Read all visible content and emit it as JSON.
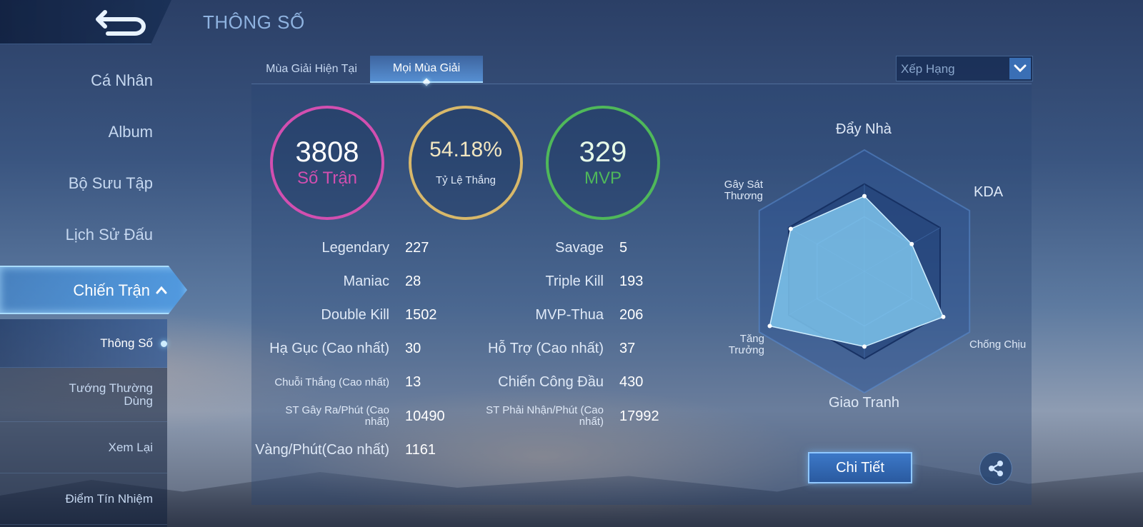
{
  "header": {
    "title": "THÔNG SỐ"
  },
  "sidebar": {
    "items": [
      {
        "label": "Cá Nhân"
      },
      {
        "label": "Album"
      },
      {
        "label": "Bộ Sưu Tập"
      },
      {
        "label": "Lịch Sử Đấu"
      }
    ],
    "active_label": "Chiến Trận",
    "sub_items": [
      {
        "label": "Thông Số"
      },
      {
        "label": "Tướng Thường Dùng"
      },
      {
        "label": "Xem Lại"
      },
      {
        "label": "Điểm Tín Nhiệm"
      }
    ]
  },
  "tabs": [
    {
      "label": "Mùa Giải Hiện Tại"
    },
    {
      "label": "Mọi Mùa Giải"
    }
  ],
  "dropdown": {
    "value": "Xếp Hạng"
  },
  "summary": {
    "matches": {
      "value": "3808",
      "label": "Số Trận",
      "color": "#d24fb0"
    },
    "winrate": {
      "value": "54.18%",
      "label": "Tỷ Lệ Thắng",
      "color": "#d8b86a"
    },
    "mvp": {
      "value": "329",
      "label": "MVP",
      "color": "#4fb85a"
    }
  },
  "stats_left": [
    {
      "label": "Legendary",
      "value": "227"
    },
    {
      "label": "Maniac",
      "value": "28"
    },
    {
      "label": "Double Kill",
      "value": "1502"
    },
    {
      "label": "Hạ Gục (Cao nhất)",
      "value": "30"
    },
    {
      "label": "Chuỗi Thắng (Cao nhất)",
      "value": "13"
    },
    {
      "label": "ST Gây Ra/Phút (Cao nhất)",
      "value": "10490"
    },
    {
      "label": "Vàng/Phút(Cao nhất)",
      "value": "1161"
    }
  ],
  "stats_right": [
    {
      "label": "Savage",
      "value": "5"
    },
    {
      "label": "Triple Kill",
      "value": "193"
    },
    {
      "label": "MVP-Thua",
      "value": "206"
    },
    {
      "label": "Hỗ Trợ (Cao nhất)",
      "value": "37"
    },
    {
      "label": "Chiến Công Đầu",
      "value": "430"
    },
    {
      "label": "ST Phải Nhận/Phút (Cao nhất)",
      "value": "17992"
    }
  ],
  "radar": {
    "axes": [
      "Đẩy Nhà",
      "KDA",
      "Chống Chịu",
      "Giao Tranh",
      "Tăng Trưởng",
      "Gây Sát Thương"
    ],
    "values": [
      0.62,
      0.45,
      0.75,
      0.62,
      0.9,
      0.7
    ],
    "fill_color": "#7ec4ec"
  },
  "buttons": {
    "detail": "Chi Tiết"
  }
}
